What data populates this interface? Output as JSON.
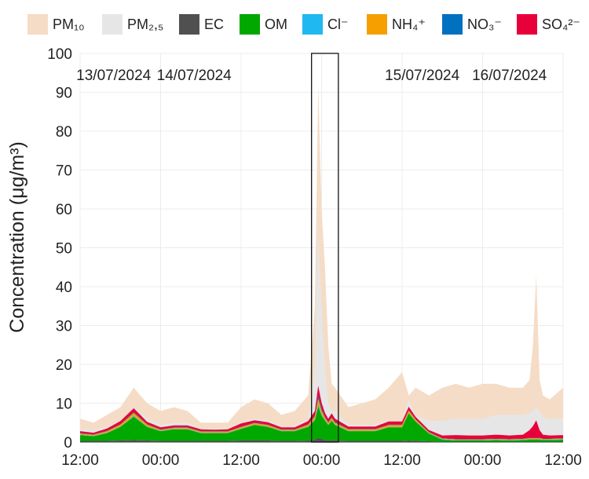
{
  "chart_data": {
    "type": "area",
    "ylabel": "Concentration (μg/m³)",
    "ylim": [
      0,
      100
    ],
    "y_ticks": [
      0,
      10,
      20,
      30,
      40,
      50,
      60,
      70,
      80,
      90,
      100
    ],
    "x_ticks": [
      "12:00",
      "00:00",
      "12:00",
      "00:00",
      "12:00",
      "00:00",
      "12:00"
    ],
    "x_tick_hours": [
      0,
      12,
      24,
      36,
      48,
      60,
      72
    ],
    "date_labels": [
      {
        "text": "13/07/2024",
        "hour": 5
      },
      {
        "text": "14/07/2024",
        "hour": 17
      },
      {
        "text": "15/07/2024",
        "hour": 51
      },
      {
        "text": "16/07/2024",
        "hour": 64
      }
    ],
    "highlight_hours": [
      34.5,
      38.5
    ],
    "x_hours": [
      0,
      2,
      4,
      6,
      8,
      10,
      12,
      14,
      16,
      18,
      20,
      22,
      24,
      26,
      28,
      30,
      32,
      34,
      35,
      35.5,
      36,
      36.5,
      37,
      37.5,
      38,
      40,
      42,
      44,
      46,
      48,
      49,
      50,
      52,
      54,
      56,
      58,
      60,
      62,
      64,
      66,
      67,
      67.5,
      68,
      68.5,
      69,
      70,
      72
    ],
    "series": [
      {
        "name": "SO₄²⁻",
        "color": "#e8003a",
        "values": [
          0.5,
          0.4,
          0.6,
          0.8,
          1.0,
          0.6,
          0.5,
          0.5,
          0.5,
          0.5,
          0.4,
          0.5,
          0.8,
          0.6,
          0.6,
          0.5,
          0.5,
          0.8,
          1.2,
          2.5,
          1.5,
          1.0,
          0.8,
          1.0,
          0.8,
          0.6,
          0.6,
          0.6,
          0.8,
          0.8,
          0.9,
          0.6,
          0.5,
          0.7,
          1.0,
          0.9,
          0.9,
          1.0,
          0.9,
          1.0,
          2.0,
          3.0,
          4.5,
          2.0,
          1.0,
          0.8,
          0.8
        ]
      },
      {
        "name": "NO₃⁻",
        "color": "#0070c0",
        "values": [
          0.1,
          0.1,
          0.1,
          0.1,
          0.2,
          0.1,
          0.1,
          0.1,
          0.1,
          0.1,
          0.1,
          0.1,
          0.1,
          0.1,
          0.1,
          0.1,
          0.1,
          0.1,
          0.2,
          0.8,
          0.5,
          0.2,
          0.2,
          0.2,
          0.2,
          0.1,
          0.1,
          0.1,
          0.1,
          0.1,
          0.1,
          0.1,
          0.1,
          0.1,
          0.1,
          0.1,
          0.1,
          0.1,
          0.1,
          0.1,
          0.1,
          0.1,
          0.1,
          0.1,
          0.1,
          0.1,
          0.1
        ]
      },
      {
        "name": "NH₄⁺",
        "color": "#f5a000",
        "values": [
          0.3,
          0.3,
          0.4,
          0.5,
          0.8,
          0.5,
          0.3,
          0.3,
          0.3,
          0.3,
          0.3,
          0.3,
          0.4,
          0.4,
          0.4,
          0.3,
          0.3,
          0.5,
          0.8,
          1.5,
          1.0,
          0.6,
          0.5,
          0.6,
          0.5,
          0.4,
          0.4,
          0.4,
          0.5,
          0.5,
          0.6,
          0.4,
          0.2,
          0.2,
          0.2,
          0.2,
          0.2,
          0.2,
          0.2,
          0.2,
          0.3,
          0.3,
          0.3,
          0.3,
          0.2,
          0.2,
          0.2
        ]
      },
      {
        "name": "Cl⁻",
        "color": "#20b8f0",
        "values": [
          0.1,
          0.1,
          0.1,
          0.1,
          0.2,
          0.1,
          0.1,
          0.1,
          0.1,
          0.1,
          0.1,
          0.1,
          0.1,
          0.1,
          0.1,
          0.1,
          0.1,
          0.1,
          0.2,
          0.5,
          0.3,
          0.2,
          0.1,
          0.1,
          0.1,
          0.1,
          0.1,
          0.1,
          0.1,
          0.1,
          0.1,
          0.1,
          0.1,
          0.1,
          0.1,
          0.1,
          0.1,
          0.1,
          0.1,
          0.1,
          0.1,
          0.1,
          0.1,
          0.1,
          0.1,
          0.1,
          0.1
        ]
      },
      {
        "name": "OM",
        "color": "#00a800",
        "values": [
          1.5,
          1.2,
          2.0,
          3.5,
          6.0,
          3.5,
          2.5,
          3.0,
          3.0,
          2.0,
          2.0,
          2.0,
          3.0,
          4.0,
          3.5,
          2.5,
          2.5,
          3.5,
          5.0,
          8.0,
          6.0,
          5.0,
          4.0,
          5.0,
          4.0,
          2.5,
          2.5,
          2.5,
          3.5,
          3.5,
          7.0,
          5.0,
          2.0,
          0.5,
          0.3,
          0.3,
          0.3,
          0.4,
          0.3,
          0.4,
          0.5,
          0.5,
          0.5,
          0.5,
          0.4,
          0.4,
          0.5
        ]
      },
      {
        "name": "EC",
        "color": "#505050",
        "values": [
          0.3,
          0.3,
          0.3,
          0.4,
          0.5,
          0.4,
          0.3,
          0.3,
          0.3,
          0.3,
          0.3,
          0.3,
          0.4,
          0.4,
          0.4,
          0.3,
          0.3,
          0.4,
          0.6,
          1.2,
          0.8,
          0.5,
          0.4,
          0.5,
          0.4,
          0.3,
          0.3,
          0.3,
          0.3,
          0.3,
          0.4,
          0.3,
          0.2,
          0.1,
          0.1,
          0.1,
          0.1,
          0.1,
          0.1,
          0.1,
          0.1,
          0.1,
          0.1,
          0.1,
          0.1,
          0.1,
          0.1
        ]
      },
      {
        "name": "PM₂,₅",
        "color": "#e6e6e6",
        "values": [
          3.5,
          3.0,
          4.0,
          5.5,
          9.0,
          6.0,
          4.5,
          5.0,
          5.0,
          3.5,
          3.5,
          3.5,
          5.0,
          6.0,
          5.5,
          4.0,
          4.0,
          6.0,
          20,
          55,
          35,
          20,
          10,
          8,
          8,
          4.5,
          4.5,
          4.5,
          5.5,
          5.5,
          11,
          7,
          5.5,
          5.5,
          6.0,
          6.0,
          6.0,
          7.0,
          7.0,
          7.0,
          7.5,
          8.0,
          9.0,
          8.0,
          6.5,
          6.0,
          6.0
        ]
      },
      {
        "name": "PM₁₀",
        "color": "#f5dcc6",
        "values": [
          6,
          5,
          7,
          9,
          14,
          10,
          8,
          9,
          8,
          5,
          5,
          5,
          9,
          11,
          10,
          7,
          8,
          12,
          35,
          92,
          60,
          45,
          25,
          15,
          14,
          9,
          10,
          11,
          14,
          18,
          12,
          14,
          12,
          14,
          15,
          14,
          15,
          15,
          14,
          14,
          16,
          25,
          43,
          16,
          12,
          11,
          14
        ]
      }
    ]
  }
}
